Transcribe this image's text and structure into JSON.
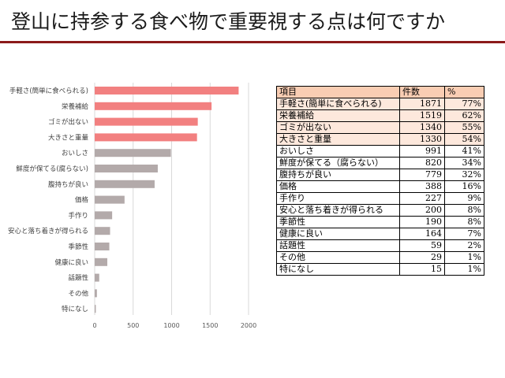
{
  "title": "登山に持参する食べ物で重要視する点は何ですか",
  "colors": {
    "highlight_bar": "#f28080",
    "normal_bar": "#b3aaaa",
    "rule": "#8b1a1a",
    "header_bg": "#f9cdb3",
    "highlight_row": "#fde8dc"
  },
  "chart_data": {
    "type": "bar",
    "orientation": "horizontal",
    "categories": [
      "手軽さ(簡単に食べられる)",
      "栄養補給",
      "ゴミが出ない",
      "大きさと重量",
      "おいしさ",
      "鮮度が保てる(腐らない)",
      "腹持ちが良い",
      "価格",
      "手作り",
      "安心と落ち着きが得られる",
      "季節性",
      "健康に良い",
      "話題性",
      "その他",
      "特になし"
    ],
    "values": [
      1871,
      1519,
      1340,
      1330,
      991,
      820,
      779,
      388,
      227,
      200,
      190,
      164,
      59,
      29,
      15
    ],
    "highlighted_count": 4,
    "xlim": [
      0,
      2000
    ],
    "xticks": [
      "0",
      "500",
      "1000",
      "1500",
      "2000"
    ],
    "grid": true,
    "title": "",
    "xlabel": "",
    "ylabel": ""
  },
  "table": {
    "headers": [
      "項目",
      "件数",
      "%"
    ],
    "rows": [
      {
        "item": "手軽さ(簡単に食べられる)",
        "count": "1871",
        "pct": "77%",
        "highlight": true
      },
      {
        "item": "栄養補給",
        "count": "1519",
        "pct": "62%",
        "highlight": true
      },
      {
        "item": "ゴミが出ない",
        "count": "1340",
        "pct": "55%",
        "highlight": true
      },
      {
        "item": "大きさと重量",
        "count": "1330",
        "pct": "54%",
        "highlight": true
      },
      {
        "item": "おいしさ",
        "count": "991",
        "pct": "41%",
        "highlight": false
      },
      {
        "item": "鮮度が保てる（腐らない）",
        "count": "820",
        "pct": "34%",
        "highlight": false
      },
      {
        "item": "腹持ちが良い",
        "count": "779",
        "pct": "32%",
        "highlight": false
      },
      {
        "item": "価格",
        "count": "388",
        "pct": "16%",
        "highlight": false
      },
      {
        "item": "手作り",
        "count": "227",
        "pct": "9%",
        "highlight": false
      },
      {
        "item": "安心と落ち着きが得られる",
        "count": "200",
        "pct": "8%",
        "highlight": false
      },
      {
        "item": "季節性",
        "count": "190",
        "pct": "8%",
        "highlight": false
      },
      {
        "item": "健康に良い",
        "count": "164",
        "pct": "7%",
        "highlight": false
      },
      {
        "item": "話題性",
        "count": "59",
        "pct": "2%",
        "highlight": false
      },
      {
        "item": "その他",
        "count": "29",
        "pct": "1%",
        "highlight": false
      },
      {
        "item": "特になし",
        "count": "15",
        "pct": "1%",
        "highlight": false
      }
    ]
  }
}
